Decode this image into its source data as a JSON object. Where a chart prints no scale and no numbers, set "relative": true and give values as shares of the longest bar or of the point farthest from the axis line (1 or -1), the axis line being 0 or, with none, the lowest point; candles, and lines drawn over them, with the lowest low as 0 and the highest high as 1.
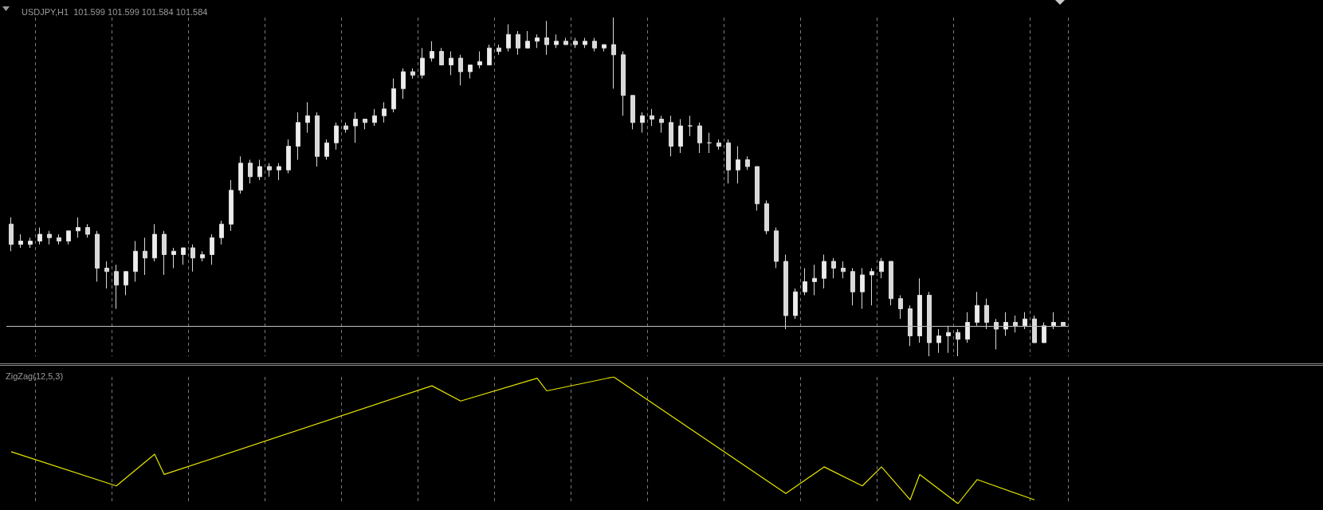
{
  "chart_data": [
    {
      "type": "candlestick",
      "title": "USDJPY,H1  101.599 101.599 101.584 101.584",
      "relative": true,
      "color": "#d9d9d9",
      "grid": "x",
      "categories": [
        null,
        null,
        null,
        null,
        null,
        null,
        null,
        null,
        null,
        null,
        null,
        null,
        null,
        null,
        null,
        null,
        null,
        null,
        null,
        null,
        null,
        null,
        null,
        null,
        null,
        null,
        null,
        null,
        null,
        null,
        null,
        null,
        null,
        null,
        null,
        null,
        null,
        null,
        null,
        null,
        null,
        null,
        null,
        null,
        null,
        null,
        null,
        null,
        null,
        null,
        null,
        null,
        null,
        null,
        null,
        null,
        null,
        null,
        null,
        null,
        null,
        null,
        null,
        null,
        null,
        null,
        null,
        null,
        null,
        null,
        null,
        null,
        null,
        null,
        null,
        null,
        null,
        null,
        null,
        null,
        null,
        null,
        null,
        null,
        null,
        null,
        null,
        null,
        null,
        null,
        null,
        null,
        null,
        null,
        null,
        null,
        null,
        null,
        null,
        null,
        null,
        null,
        null,
        null,
        null,
        null,
        null,
        null,
        null,
        null,
        null
      ],
      "ohlc": [
        [
          0.39,
          0.41,
          0.31,
          0.33
        ],
        [
          0.33,
          0.36,
          0.32,
          0.34
        ],
        [
          0.33,
          0.35,
          0.32,
          0.34
        ],
        [
          0.34,
          0.38,
          0.33,
          0.36
        ],
        [
          0.36,
          0.37,
          0.33,
          0.35
        ],
        [
          0.35,
          0.36,
          0.33,
          0.34
        ],
        [
          0.34,
          0.37,
          0.33,
          0.37
        ],
        [
          0.37,
          0.41,
          0.35,
          0.38
        ],
        [
          0.38,
          0.39,
          0.35,
          0.36
        ],
        [
          0.36,
          0.37,
          0.22,
          0.26
        ],
        [
          0.26,
          0.28,
          0.2,
          0.25
        ],
        [
          0.25,
          0.27,
          0.14,
          0.21
        ],
        [
          0.21,
          0.25,
          0.18,
          0.25
        ],
        [
          0.25,
          0.34,
          0.22,
          0.31
        ],
        [
          0.31,
          0.35,
          0.24,
          0.29
        ],
        [
          0.29,
          0.39,
          0.28,
          0.36
        ],
        [
          0.36,
          0.37,
          0.24,
          0.3
        ],
        [
          0.3,
          0.32,
          0.26,
          0.31
        ],
        [
          0.3,
          0.32,
          0.27,
          0.32
        ],
        [
          0.32,
          0.33,
          0.25,
          0.29
        ],
        [
          0.29,
          0.31,
          0.28,
          0.3
        ],
        [
          0.3,
          0.36,
          0.27,
          0.35
        ],
        [
          0.35,
          0.4,
          0.33,
          0.39
        ],
        [
          0.39,
          0.52,
          0.37,
          0.49
        ],
        [
          0.49,
          0.59,
          0.48,
          0.57
        ],
        [
          0.57,
          0.58,
          0.51,
          0.53
        ],
        [
          0.53,
          0.58,
          0.52,
          0.56
        ],
        [
          0.56,
          0.57,
          0.53,
          0.55
        ],
        [
          0.55,
          0.57,
          0.52,
          0.56
        ],
        [
          0.55,
          0.64,
          0.54,
          0.62
        ],
        [
          0.62,
          0.72,
          0.58,
          0.69
        ],
        [
          0.69,
          0.75,
          0.66,
          0.71
        ],
        [
          0.71,
          0.72,
          0.56,
          0.59
        ],
        [
          0.59,
          0.64,
          0.58,
          0.63
        ],
        [
          0.63,
          0.69,
          0.61,
          0.68
        ],
        [
          0.68,
          0.69,
          0.66,
          0.67
        ],
        [
          0.68,
          0.72,
          0.63,
          0.7
        ],
        [
          0.7,
          0.7,
          0.67,
          0.69
        ],
        [
          0.69,
          0.73,
          0.68,
          0.71
        ],
        [
          0.71,
          0.75,
          0.69,
          0.73
        ],
        [
          0.73,
          0.82,
          0.72,
          0.79
        ],
        [
          0.79,
          0.85,
          0.76,
          0.84
        ],
        [
          0.84,
          0.85,
          0.82,
          0.83
        ],
        [
          0.83,
          0.91,
          0.82,
          0.88
        ],
        [
          0.88,
          0.93,
          0.87,
          0.9
        ],
        [
          0.9,
          0.91,
          0.86,
          0.86
        ],
        [
          0.86,
          0.9,
          0.83,
          0.88
        ],
        [
          0.88,
          0.89,
          0.8,
          0.84
        ],
        [
          0.84,
          0.86,
          0.82,
          0.86
        ],
        [
          0.86,
          0.9,
          0.85,
          0.87
        ],
        [
          0.86,
          0.92,
          0.86,
          0.91
        ],
        [
          0.91,
          0.92,
          0.89,
          0.9
        ],
        [
          0.91,
          0.98,
          0.9,
          0.95
        ],
        [
          0.95,
          0.96,
          0.89,
          0.91
        ],
        [
          0.91,
          0.96,
          0.91,
          0.93
        ],
        [
          0.93,
          0.95,
          0.91,
          0.94
        ],
        [
          0.94,
          0.99,
          0.89,
          0.92
        ],
        [
          0.92,
          0.95,
          0.91,
          0.93
        ],
        [
          0.93,
          0.94,
          0.92,
          0.92
        ],
        [
          0.93,
          0.94,
          0.91,
          0.92
        ],
        [
          0.92,
          0.94,
          0.91,
          0.93
        ],
        [
          0.93,
          0.94,
          0.9,
          0.91
        ],
        [
          0.91,
          0.92,
          0.9,
          0.92
        ],
        [
          0.92,
          1.0,
          0.79,
          0.89
        ],
        [
          0.89,
          0.9,
          0.71,
          0.77
        ],
        [
          0.77,
          0.77,
          0.67,
          0.69
        ],
        [
          0.69,
          0.72,
          0.66,
          0.71
        ],
        [
          0.71,
          0.73,
          0.68,
          0.7
        ],
        [
          0.7,
          0.71,
          0.66,
          0.69
        ],
        [
          0.69,
          0.71,
          0.59,
          0.62
        ],
        [
          0.62,
          0.7,
          0.6,
          0.68
        ],
        [
          0.68,
          0.71,
          0.65,
          0.68
        ],
        [
          0.68,
          0.69,
          0.6,
          0.63
        ],
        [
          0.63,
          0.66,
          0.6,
          0.63
        ],
        [
          0.63,
          0.64,
          0.61,
          0.62
        ],
        [
          0.63,
          0.64,
          0.51,
          0.55
        ],
        [
          0.55,
          0.62,
          0.51,
          0.58
        ],
        [
          0.58,
          0.59,
          0.55,
          0.56
        ],
        [
          0.56,
          0.56,
          0.43,
          0.45
        ],
        [
          0.45,
          0.46,
          0.36,
          0.37
        ],
        [
          0.37,
          0.38,
          0.26,
          0.28
        ],
        [
          0.28,
          0.3,
          0.08,
          0.12
        ],
        [
          0.12,
          0.2,
          0.11,
          0.19
        ],
        [
          0.19,
          0.26,
          0.18,
          0.22
        ],
        [
          0.22,
          0.27,
          0.18,
          0.23
        ],
        [
          0.23,
          0.3,
          0.2,
          0.28
        ],
        [
          0.28,
          0.29,
          0.23,
          0.26
        ],
        [
          0.26,
          0.28,
          0.23,
          0.25
        ],
        [
          0.25,
          0.26,
          0.15,
          0.19
        ],
        [
          0.19,
          0.26,
          0.14,
          0.24
        ],
        [
          0.24,
          0.26,
          0.15,
          0.25
        ],
        [
          0.25,
          0.29,
          0.23,
          0.28
        ],
        [
          0.28,
          0.28,
          0.15,
          0.17
        ],
        [
          0.17,
          0.18,
          0.11,
          0.14
        ],
        [
          0.14,
          0.15,
          0.03,
          0.06
        ],
        [
          0.06,
          0.23,
          0.04,
          0.18
        ],
        [
          0.18,
          0.19,
          0.0,
          0.04
        ],
        [
          0.04,
          0.08,
          0.01,
          0.06
        ],
        [
          0.06,
          0.09,
          0.01,
          0.07
        ],
        [
          0.07,
          0.08,
          0.0,
          0.05
        ],
        [
          0.05,
          0.13,
          0.04,
          0.1
        ],
        [
          0.1,
          0.19,
          0.09,
          0.15
        ],
        [
          0.15,
          0.17,
          0.08,
          0.1
        ],
        [
          0.1,
          0.11,
          0.02,
          0.08
        ],
        [
          0.08,
          0.13,
          0.06,
          0.1
        ],
        [
          0.1,
          0.12,
          0.07,
          0.09
        ],
        [
          0.09,
          0.13,
          0.08,
          0.11
        ],
        [
          0.11,
          0.12,
          0.04,
          0.04
        ],
        [
          0.04,
          0.1,
          0.04,
          0.09
        ],
        [
          0.09,
          0.13,
          0.08,
          0.1
        ],
        [
          0.1,
          0.1,
          0.09,
          0.09
        ]
      ],
      "ref_lines": [
        {
          "axis": "y",
          "value": 0.09,
          "color": "#c0c0c0"
        }
      ]
    },
    {
      "type": "line",
      "title": "ZigZag(12,5,3)",
      "relative": true,
      "color": "#e6e600",
      "grid": "x",
      "marker": "none",
      "categories": [
        null,
        null,
        null,
        null,
        null,
        null,
        null,
        null,
        null,
        null,
        null,
        null,
        null,
        null,
        null,
        null,
        null,
        null,
        null,
        null,
        null,
        null,
        null,
        null,
        null,
        null,
        null,
        null,
        null,
        null,
        null,
        null,
        null,
        null,
        null,
        null,
        null,
        null,
        null,
        null,
        null,
        null,
        null,
        null,
        null,
        null,
        null,
        null,
        null,
        null,
        null,
        null,
        null,
        null,
        null,
        null,
        null,
        null,
        null,
        null,
        null,
        null,
        null,
        null,
        null,
        null,
        null,
        null,
        null,
        null,
        null,
        null,
        null,
        null,
        null,
        null,
        null,
        null,
        null,
        null,
        null,
        null,
        null,
        null,
        null,
        null,
        null,
        null,
        null,
        null,
        null,
        null,
        null,
        null,
        null,
        null,
        null,
        null,
        null,
        null,
        null,
        null,
        null,
        null,
        null,
        null,
        null,
        null,
        null,
        null,
        null
      ],
      "values": [
        0.41,
        null,
        null,
        null,
        null,
        null,
        null,
        null,
        null,
        null,
        null,
        0.14,
        null,
        null,
        null,
        0.39,
        0.23,
        null,
        null,
        null,
        null,
        null,
        null,
        null,
        null,
        null,
        null,
        null,
        null,
        null,
        null,
        null,
        null,
        null,
        null,
        null,
        null,
        null,
        null,
        null,
        null,
        null,
        null,
        null,
        0.93,
        null,
        null,
        0.81,
        null,
        null,
        null,
        null,
        null,
        null,
        null,
        0.99,
        0.89,
        null,
        null,
        null,
        null,
        null,
        null,
        1.0,
        null,
        null,
        null,
        null,
        null,
        null,
        null,
        null,
        null,
        null,
        null,
        null,
        null,
        null,
        null,
        null,
        null,
        0.08,
        null,
        null,
        null,
        0.29,
        null,
        null,
        null,
        0.14,
        null,
        0.29,
        null,
        null,
        0.03,
        0.23,
        null,
        null,
        null,
        0.0,
        null,
        0.19,
        null,
        null,
        null,
        null,
        null,
        0.03,
        null,
        null,
        null
      ]
    }
  ]
}
